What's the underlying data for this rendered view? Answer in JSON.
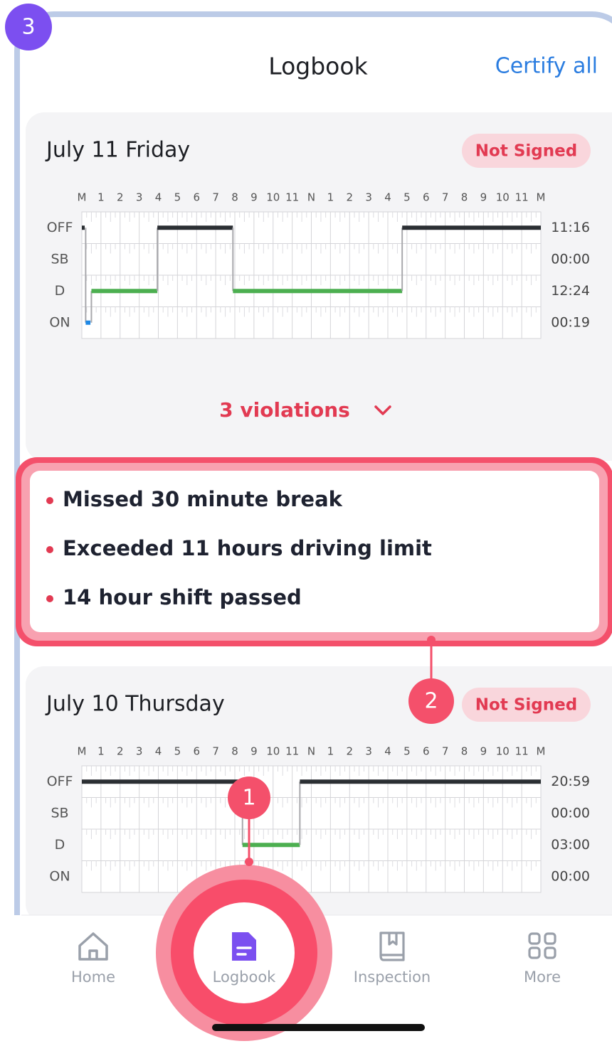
{
  "badge": "3",
  "header": {
    "title": "Logbook",
    "action": "Certify all"
  },
  "hours": [
    "M",
    "1",
    "2",
    "3",
    "4",
    "5",
    "6",
    "7",
    "8",
    "9",
    "10",
    "11",
    "N",
    "1",
    "2",
    "3",
    "4",
    "5",
    "6",
    "7",
    "8",
    "9",
    "10",
    "11",
    "M"
  ],
  "statuses": [
    "OFF",
    "SB",
    "D",
    "ON"
  ],
  "days": [
    {
      "date": "July 11 Friday",
      "status": "Not Signed",
      "totals": [
        "11:16",
        "00:00",
        "12:24",
        "00:19"
      ],
      "segments": [
        {
          "row": "OFF",
          "start": 0,
          "end": 0.15
        },
        {
          "row": "ON",
          "start": 0.2,
          "end": 0.45
        },
        {
          "row": "D",
          "start": 0.5,
          "end": 3.95
        },
        {
          "row": "OFF",
          "start": 3.95,
          "end": 7.9
        },
        {
          "row": "D",
          "start": 7.9,
          "end": 16.75
        },
        {
          "row": "OFF",
          "start": 16.75,
          "end": 24
        }
      ],
      "violations": {
        "summary": "3 violations",
        "items": [
          "Missed 30 minute break",
          "Exceeded 11 hours driving limit",
          "14 hour shift passed"
        ]
      }
    },
    {
      "date": "July 10 Thursday",
      "status": "Not Signed",
      "totals": [
        "20:59",
        "00:00",
        "03:00",
        "00:00"
      ],
      "segments": [
        {
          "row": "OFF",
          "start": 0,
          "end": 8.4
        },
        {
          "row": "D",
          "start": 8.4,
          "end": 11.4
        },
        {
          "row": "OFF",
          "start": 11.4,
          "end": 24
        }
      ]
    }
  ],
  "markers": [
    "1",
    "2"
  ],
  "nav": [
    "Home",
    "Logbook",
    "Inspection",
    "More"
  ]
}
